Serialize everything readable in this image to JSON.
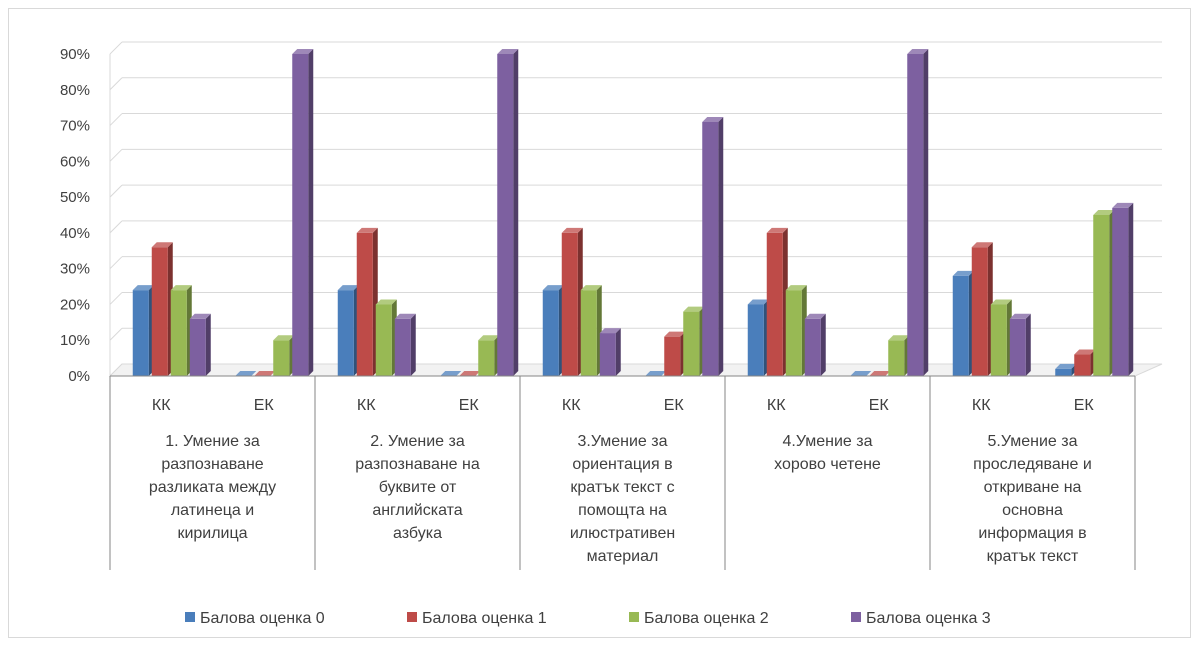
{
  "chart_data": {
    "type": "bar",
    "y_ticks": [
      "0%",
      "10%",
      "20%",
      "30%",
      "40%",
      "50%",
      "60%",
      "70%",
      "80%",
      "90%"
    ],
    "ylim": [
      0,
      90
    ],
    "grid": true,
    "legend_position": "bottom",
    "groups": [
      {
        "label_lines": [
          "1. Умение за",
          "разпознаване",
          "разликата между",
          "латинеца и",
          "кирилица"
        ],
        "categories": [
          "КК",
          "ЕК"
        ]
      },
      {
        "label_lines": [
          "2. Умение за",
          "разпознаване на",
          "буквите от",
          "английската",
          "азбука"
        ],
        "categories": [
          "КК",
          "ЕК"
        ]
      },
      {
        "label_lines": [
          "3.Умение за",
          "ориентация в",
          "кратък текст с",
          "помощта на",
          "илюстративен",
          "материал"
        ],
        "categories": [
          "КК",
          "ЕК"
        ]
      },
      {
        "label_lines": [
          "4.Умение за",
          "хорово четене"
        ],
        "categories": [
          "КК",
          "ЕК"
        ]
      },
      {
        "label_lines": [
          "5.Умение за",
          "проследяване и",
          "откриване на",
          "основна",
          "информация в",
          "кратък текст"
        ],
        "categories": [
          "КК",
          "ЕК"
        ]
      }
    ],
    "categories": [
      "КК",
      "ЕК",
      "КК",
      "ЕК",
      "КК",
      "ЕК",
      "КК",
      "ЕК",
      "КК",
      "ЕК"
    ],
    "series": [
      {
        "name": "Балова оценка 0",
        "color": "#4a7ebb",
        "values": [
          24,
          0,
          24,
          0,
          24,
          0,
          20,
          0,
          28,
          2
        ]
      },
      {
        "name": "Балова оценка 1",
        "color": "#be4b48",
        "values": [
          36,
          0,
          40,
          0,
          40,
          11,
          40,
          0,
          36,
          6
        ]
      },
      {
        "name": "Балова оценка 2",
        "color": "#98b954",
        "values": [
          24,
          10,
          20,
          10,
          24,
          18,
          24,
          10,
          20,
          45
        ]
      },
      {
        "name": "Балова оценка 3",
        "color": "#7d60a0",
        "values": [
          16,
          90,
          16,
          90,
          12,
          71,
          16,
          90,
          16,
          47
        ]
      }
    ]
  }
}
